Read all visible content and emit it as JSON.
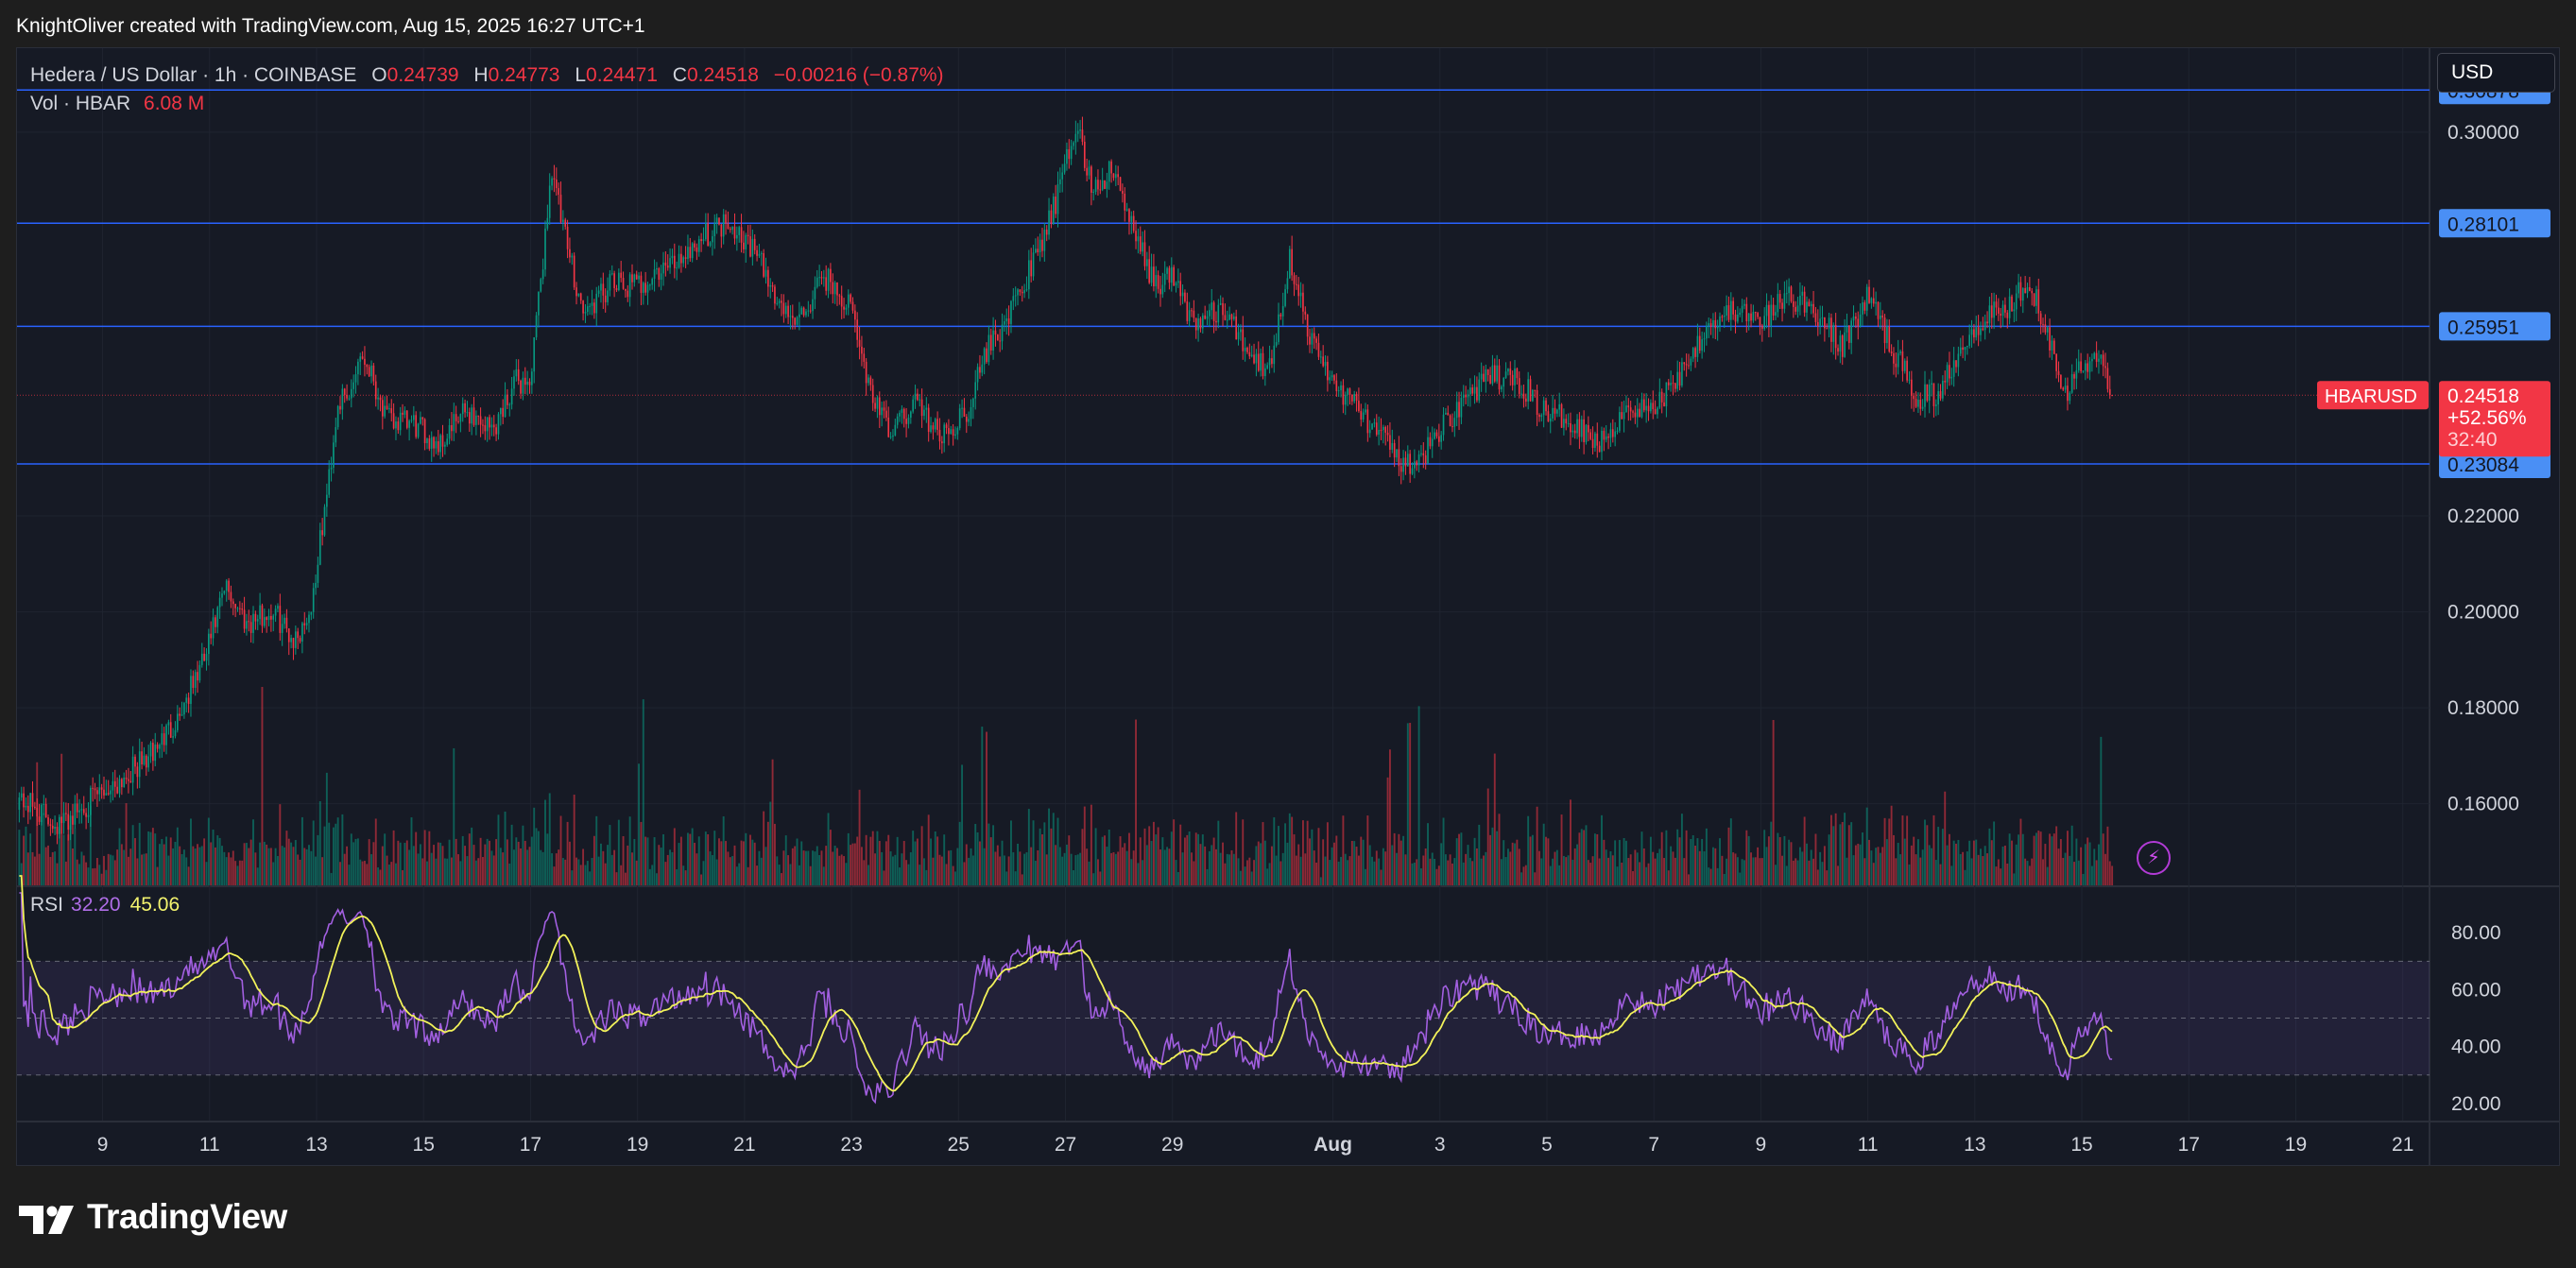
{
  "header": {
    "attribution": "KnightOliver created with TradingView.com, Aug 15, 2025 16:27 UTC+1"
  },
  "legend": {
    "symbol": "Hedera / US Dollar · 1h · COINBASE",
    "o_label": "O",
    "o_value": "0.24739",
    "h_label": "H",
    "h_value": "0.24773",
    "l_label": "L",
    "l_value": "0.24471",
    "c_label": "C",
    "c_value": "0.24518",
    "change": "−0.00216 (−0.87%)",
    "vol_label": "Vol · HBAR",
    "vol_value": "6.08 M"
  },
  "rsi_legend": {
    "label": "RSI",
    "rsi_value": "32.20",
    "ma_value": "45.06"
  },
  "currency": "USD",
  "price_badge": {
    "ticker": "HBARUSD",
    "price": "0.24518",
    "change": "+52.56%",
    "countdown": "32:40"
  },
  "footer": {
    "brand": "TradingView"
  },
  "colors": {
    "up": "#089981",
    "down": "#f23645",
    "hline": "#2962ff",
    "rsi": "#a25fe0",
    "rsi_ma": "#f2f25a",
    "badge_blue": "#4a8ff5",
    "background": "#161a25"
  },
  "icons": {
    "alert": "lightning-bolt-icon",
    "logo": "tradingview-logo-icon"
  },
  "chart_data": {
    "type": "candlestick",
    "timeframe": "1h",
    "price_axis": {
      "ylim": [
        0.143,
        0.3175
      ],
      "ticks": [
        "0.30000",
        "0.22000",
        "0.20000",
        "0.18000",
        "0.16000"
      ]
    },
    "horizontal_lines": [
      {
        "value": 0.30878,
        "label": "0.30878"
      },
      {
        "value": 0.28101,
        "label": "0.28101"
      },
      {
        "value": 0.25951,
        "label": "0.25951"
      },
      {
        "value": 0.23084,
        "label": "0.23084"
      }
    ],
    "last_price": 0.24518,
    "x_axis": {
      "day_range": [
        7.4,
        52.5
      ],
      "ticks": [
        {
          "day": 9,
          "label": "9"
        },
        {
          "day": 11,
          "label": "11"
        },
        {
          "day": 13,
          "label": "13"
        },
        {
          "day": 15,
          "label": "15"
        },
        {
          "day": 17,
          "label": "17"
        },
        {
          "day": 19,
          "label": "19"
        },
        {
          "day": 21,
          "label": "21"
        },
        {
          "day": 23,
          "label": "23"
        },
        {
          "day": 25,
          "label": "25"
        },
        {
          "day": 27,
          "label": "27"
        },
        {
          "day": 29,
          "label": "29"
        },
        {
          "day": 32,
          "label": "Aug"
        },
        {
          "day": 34,
          "label": "3"
        },
        {
          "day": 36,
          "label": "5"
        },
        {
          "day": 38,
          "label": "7"
        },
        {
          "day": 40,
          "label": "9"
        },
        {
          "day": 42,
          "label": "11"
        },
        {
          "day": 44,
          "label": "13"
        },
        {
          "day": 46,
          "label": "15"
        },
        {
          "day": 48,
          "label": "17"
        },
        {
          "day": 50,
          "label": "19"
        },
        {
          "day": 52,
          "label": "21"
        }
      ]
    },
    "close_path": [
      [
        7.4,
        0.1615
      ],
      [
        8.2,
        0.1555
      ],
      [
        8.7,
        0.16
      ],
      [
        9.2,
        0.164
      ],
      [
        9.9,
        0.17
      ],
      [
        10.4,
        0.178
      ],
      [
        10.9,
        0.19
      ],
      [
        11.3,
        0.205
      ],
      [
        11.7,
        0.198
      ],
      [
        12.2,
        0.2
      ],
      [
        12.6,
        0.194
      ],
      [
        12.9,
        0.201
      ],
      [
        13.2,
        0.225
      ],
      [
        13.4,
        0.244
      ],
      [
        13.6,
        0.244
      ],
      [
        13.8,
        0.254
      ],
      [
        14.0,
        0.251
      ],
      [
        14.3,
        0.24
      ],
      [
        14.8,
        0.239
      ],
      [
        15.3,
        0.235
      ],
      [
        15.8,
        0.242
      ],
      [
        16.3,
        0.238
      ],
      [
        16.7,
        0.248
      ],
      [
        17.0,
        0.248
      ],
      [
        17.2,
        0.27
      ],
      [
        17.4,
        0.293
      ],
      [
        17.6,
        0.28
      ],
      [
        18.0,
        0.262
      ],
      [
        18.5,
        0.268
      ],
      [
        19.0,
        0.268
      ],
      [
        19.6,
        0.272
      ],
      [
        20.2,
        0.278
      ],
      [
        20.7,
        0.282
      ],
      [
        21.2,
        0.275
      ],
      [
        21.6,
        0.265
      ],
      [
        22.0,
        0.26
      ],
      [
        22.5,
        0.27
      ],
      [
        23.0,
        0.263
      ],
      [
        23.3,
        0.248
      ],
      [
        23.7,
        0.237
      ],
      [
        24.2,
        0.244
      ],
      [
        24.7,
        0.236
      ],
      [
        25.2,
        0.243
      ],
      [
        25.5,
        0.254
      ],
      [
        26.0,
        0.263
      ],
      [
        26.5,
        0.275
      ],
      [
        26.9,
        0.288
      ],
      [
        27.2,
        0.302
      ],
      [
        27.5,
        0.288
      ],
      [
        27.9,
        0.292
      ],
      [
        28.3,
        0.278
      ],
      [
        28.7,
        0.268
      ],
      [
        29.0,
        0.27
      ],
      [
        29.4,
        0.26
      ],
      [
        29.9,
        0.263
      ],
      [
        30.4,
        0.255
      ],
      [
        30.8,
        0.25
      ],
      [
        31.2,
        0.274
      ],
      [
        31.6,
        0.256
      ],
      [
        32.0,
        0.248
      ],
      [
        32.5,
        0.242
      ],
      [
        33.0,
        0.235
      ],
      [
        33.5,
        0.229
      ],
      [
        34.0,
        0.238
      ],
      [
        34.5,
        0.245
      ],
      [
        35.0,
        0.249
      ],
      [
        35.5,
        0.248
      ],
      [
        36.0,
        0.241
      ],
      [
        36.5,
        0.24
      ],
      [
        37.0,
        0.235
      ],
      [
        37.5,
        0.243
      ],
      [
        38.0,
        0.242
      ],
      [
        38.5,
        0.25
      ],
      [
        39.0,
        0.26
      ],
      [
        39.5,
        0.263
      ],
      [
        40.0,
        0.26
      ],
      [
        40.5,
        0.266
      ],
      [
        41.0,
        0.263
      ],
      [
        41.5,
        0.255
      ],
      [
        42.0,
        0.266
      ],
      [
        42.5,
        0.254
      ],
      [
        42.9,
        0.245
      ],
      [
        43.3,
        0.245
      ],
      [
        43.7,
        0.255
      ],
      [
        44.2,
        0.262
      ],
      [
        44.6,
        0.263
      ],
      [
        45.0,
        0.27
      ],
      [
        45.4,
        0.257
      ],
      [
        45.7,
        0.246
      ],
      [
        46.1,
        0.252
      ],
      [
        46.3,
        0.254
      ],
      [
        46.6,
        0.2452
      ]
    ],
    "rsi": {
      "ylim": [
        14,
        96
      ],
      "ticks": [
        "80.00",
        "60.00",
        "40.00",
        "20.00"
      ],
      "band": [
        30,
        70
      ],
      "midline": 50,
      "current": 32.2,
      "ma_current": 45.06
    }
  }
}
